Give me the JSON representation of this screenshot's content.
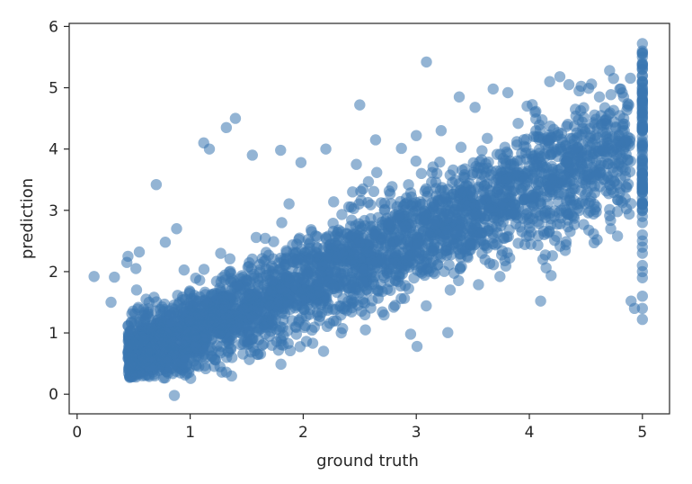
{
  "chart_data": {
    "type": "scatter",
    "title": "",
    "xlabel": "ground truth",
    "ylabel": "prediction",
    "xlim": [
      -0.07,
      5.24
    ],
    "ylim": [
      -0.32,
      6.05
    ],
    "xticks": [
      "0",
      "1",
      "2",
      "3",
      "4",
      "5"
    ],
    "yticks": [
      "0",
      "1",
      "2",
      "3",
      "4",
      "5",
      "6"
    ],
    "grid": false,
    "legend": "none",
    "colors": {
      "points": "#3a76b0",
      "axes": "#262626"
    },
    "series": [
      {
        "points_note_ref": "sampled",
        "x": [
          0.15,
          0.33,
          0.3,
          0.45,
          0.55,
          0.44,
          0.52,
          0.61,
          0.48,
          0.7,
          0.88,
          0.78,
          0.86,
          1.12,
          1.17,
          1.4,
          1.32,
          1.55,
          1.8,
          1.98,
          2.2,
          2.5,
          2.47,
          2.64,
          3.0,
          3.09,
          3.22,
          3.38,
          3.52,
          3.68,
          3.81,
          3.98,
          4.05,
          4.18,
          4.27,
          4.35,
          4.44,
          4.55,
          4.62,
          4.71,
          4.8,
          4.88,
          4.1,
          3.74,
          4.6,
          4.78,
          2.55,
          2.18,
          1.65,
          1.05,
          0.95,
          1.28,
          1.9,
          2.8,
          3.3,
          4.12,
          4.47,
          4.72,
          2.35,
          2.95,
          4.9,
          4.93,
          3.05,
          1.25,
          0.76,
          0.65,
          0.58,
          0.51,
          0.47,
          0.83,
          1.0,
          1.15,
          1.35,
          1.6,
          1.7,
          2.05,
          2.3,
          2.42,
          2.7,
          2.85,
          3.15,
          3.42,
          3.6,
          3.85,
          4.0,
          4.25,
          4.4,
          4.52,
          4.68,
          4.84,
          0.92,
          1.45,
          1.75,
          2.12,
          2.62,
          3.26,
          3.71,
          4.06,
          4.32,
          4.58,
          1.2,
          2.4,
          3.5,
          4.2,
          0.72,
          1.08,
          1.5,
          1.95,
          2.75,
          3.9
        ],
        "y": [
          1.92,
          1.91,
          1.5,
          2.25,
          2.32,
          2.15,
          2.05,
          1.55,
          1.18,
          3.42,
          2.7,
          2.48,
          -0.02,
          4.1,
          4.0,
          4.5,
          4.35,
          3.9,
          3.98,
          3.78,
          4.0,
          4.72,
          3.75,
          4.15,
          4.22,
          5.42,
          4.3,
          4.85,
          4.68,
          4.98,
          4.92,
          4.7,
          4.6,
          5.1,
          5.18,
          5.05,
          4.95,
          5.06,
          4.85,
          5.28,
          4.98,
          4.72,
          1.52,
          1.92,
          2.52,
          2.58,
          1.05,
          0.7,
          0.82,
          0.48,
          0.62,
          0.36,
          1.2,
          1.42,
          1.7,
          2.2,
          3.15,
          2.7,
          1.4,
          0.98,
          1.52,
          1.4,
          2.1,
          1.02,
          0.85,
          0.75,
          0.55,
          0.5,
          0.48,
          0.9,
          1.2,
          1.48,
          1.62,
          1.78,
          2.02,
          2.2,
          2.42,
          2.58,
          2.76,
          2.92,
          3.06,
          3.3,
          3.4,
          3.58,
          3.72,
          3.88,
          4.0,
          4.12,
          4.2,
          4.3,
          1.1,
          1.72,
          1.95,
          2.3,
          2.62,
          3.2,
          3.5,
          3.8,
          4.05,
          4.4,
          1.4,
          2.45,
          3.25,
          3.95,
          0.95,
          1.3,
          1.85,
          2.15,
          2.8,
          3.62
        ]
      },
      {
        "x_value": 5.0,
        "y": [
          5.72,
          5.6,
          5.5,
          5.4,
          5.3,
          5.2,
          5.1,
          5.0,
          4.9,
          4.8,
          4.7,
          4.6,
          4.5,
          4.4,
          4.3,
          4.2,
          4.1,
          4.0,
          3.9,
          3.8,
          3.7,
          3.6,
          3.5,
          3.4,
          3.3,
          3.2,
          3.1,
          3.0,
          2.9,
          2.8,
          2.6,
          2.5,
          2.4,
          2.3,
          2.1,
          2.0,
          1.9,
          1.6,
          1.4,
          1.22
        ]
      }
    ]
  }
}
